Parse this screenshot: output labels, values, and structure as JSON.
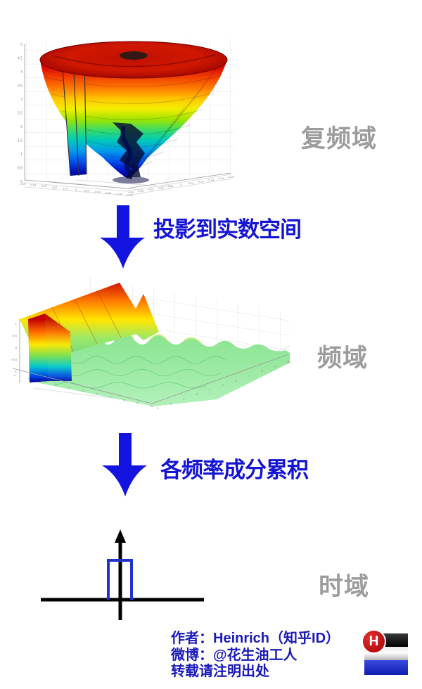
{
  "sections": {
    "complex_frequency": {
      "label": "复频域"
    },
    "frequency": {
      "label": "频域"
    },
    "time": {
      "label": "时域"
    }
  },
  "arrows": [
    {
      "label": "投影到实数空间"
    },
    {
      "label": "各频率成分累积"
    }
  ],
  "footer": {
    "author_line": "作者：Heinrich（知乎ID）",
    "weibo_line": "微博：@花生油工人",
    "notice_line": "转载请注明出处",
    "logo_letter": "H"
  },
  "colors": {
    "arrow_blue": "#1414d6",
    "footer_blue": "#1a1ab8",
    "gray_label": "#9c9c9c",
    "pulse_blue": "#2233cc",
    "logo_red": "#b40000"
  },
  "chart_data": [
    {
      "type": "surface",
      "name": "complex-frequency-surface",
      "description": "MATLAB-style 3D spiral funnel surface with jet colormap (red top rim to dark-blue twisted stem), shown inside a light grey 3D grid box; left side shows a flat rainbow cut face",
      "region_label": "复频域",
      "z_ticks": [
        5,
        4.5,
        4,
        3.5,
        3,
        2.5,
        2,
        1.5,
        1,
        0.5,
        0
      ],
      "x_ticks": [
        0.05,
        0.04,
        0.03,
        0.02,
        0.01,
        0,
        -0.01,
        -0.02,
        -0.03,
        -0.04,
        -0.05
      ],
      "y_ticks": [
        0.05,
        0.04,
        0.03,
        0.02,
        0.01,
        0,
        -0.01,
        -0.02,
        -0.03,
        -0.04,
        -0.05
      ],
      "zlim": [
        0,
        5
      ],
      "colormap": "jet",
      "grid": true
    },
    {
      "type": "surface",
      "name": "frequency-surface",
      "description": "3D surface of decaying sinc-like ridges, jet colormap: tall red/yellow peak at low frequency on back-left, ripples decaying to flat light-green toward the right; rainbow slice on front-left face",
      "region_label": "频域",
      "z_ticks": [
        1,
        0.5,
        0,
        -0.5,
        -1
      ],
      "x_ticks": [
        0,
        1,
        2,
        3,
        4,
        5,
        6,
        7,
        8,
        9,
        10
      ],
      "y_ticks": [
        0,
        1,
        2,
        3,
        4,
        5,
        6,
        7,
        8,
        9,
        10
      ],
      "zlim": [
        -1,
        1
      ],
      "colormap": "jet",
      "grid": true
    },
    {
      "type": "schematic",
      "name": "time-pulse",
      "description": "black time axis with upward arrow and a blue rectangular pulse centered on the vertical axis",
      "region_label": "时域"
    }
  ]
}
